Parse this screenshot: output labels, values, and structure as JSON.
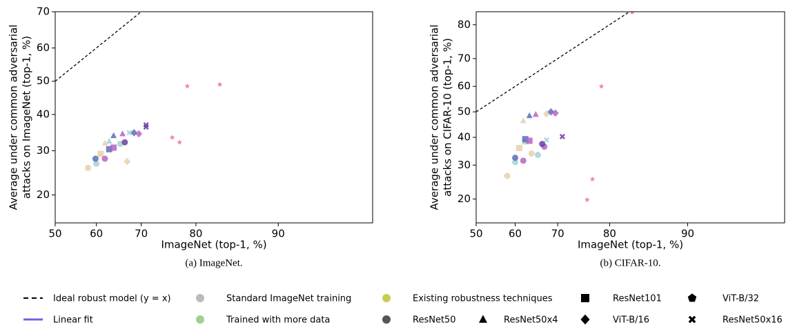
{
  "chart_data": [
    {
      "type": "scatter",
      "caption": "(a)  ImageNet.",
      "xlabel": "ImageNet (top-1, %)",
      "ylabel": [
        "Average under common adversarial",
        "attacks on ImageNet (top-1, %)"
      ],
      "xscale": "logit",
      "yscale": "logit",
      "diagonal": true,
      "xlim": [
        50,
        95.8
      ],
      "ylim": [
        15.1,
        70
      ],
      "xticks": [
        50,
        60,
        70,
        80,
        90
      ],
      "yticks": [
        20,
        30,
        40,
        50,
        60,
        70
      ],
      "series": [
        {
          "color": "#e8cfae",
          "markers": [
            "circle",
            "square",
            "triangle",
            "diamond"
          ],
          "x": [
            58,
            61,
            62,
            67
          ],
          "values": [
            25.8,
            29.2,
            32,
            27.3
          ]
        },
        {
          "color": "#a6d2d2",
          "markers": [
            "circle",
            "triangle",
            "circle",
            "x"
          ],
          "x": [
            60,
            63,
            65.5,
            67.5
          ],
          "values": [
            26.8,
            32.5,
            31.8,
            34.8
          ]
        },
        {
          "color": "#5a6fb5",
          "markers": [
            "circle",
            "square",
            "triangle",
            "diamond"
          ],
          "x": [
            59.8,
            63,
            64,
            68.5
          ],
          "values": [
            28,
            30.4,
            34,
            34.8
          ]
        },
        {
          "color": "#b565c4",
          "markers": [
            "circle",
            "square",
            "triangle",
            "diamond"
          ],
          "x": [
            62,
            64,
            66,
            69.5
          ],
          "values": [
            28,
            30.8,
            34.5,
            34.5
          ]
        },
        {
          "color": "#6a3fa0",
          "markers": [
            "circle",
            "x",
            "x"
          ],
          "x": [
            66.5,
            71,
            71
          ],
          "values": [
            32.2,
            36.4,
            37
          ]
        },
        {
          "color": "#f07080",
          "markers": [
            "star",
            "star",
            "star",
            "star"
          ],
          "x": [
            76,
            77.3,
            78.6,
            83.5
          ],
          "values": [
            33.5,
            32.2,
            48.5,
            49
          ]
        }
      ]
    },
    {
      "type": "scatter",
      "caption": "(b)  CIFAR-10.",
      "xlabel": "ImageNet (top-1, %)",
      "ylabel": [
        "Average under common adversarial",
        "attacks on CIFAR-10 (top-1, %)"
      ],
      "xscale": "logit",
      "yscale": "logit",
      "diagonal": true,
      "xlim": [
        50,
        96.1
      ],
      "ylim": [
        14.6,
        83.1
      ],
      "xticks": [
        50,
        60,
        70,
        80,
        90
      ],
      "yticks": [
        20,
        30,
        40,
        50,
        60,
        70,
        80
      ],
      "series": [
        {
          "color": "#e8cfae",
          "markers": [
            "circle",
            "square",
            "triangle",
            "circle",
            "diamond"
          ],
          "x": [
            58,
            61,
            62,
            64,
            67.5
          ],
          "values": [
            26.5,
            36,
            46.5,
            34,
            49.2
          ]
        },
        {
          "color": "#a6d2d2",
          "markers": [
            "circle",
            "square",
            "circle",
            "x"
          ],
          "x": [
            60,
            62.5,
            65.5,
            67.5
          ],
          "values": [
            31,
            38.5,
            33.5,
            39
          ]
        },
        {
          "color": "#5a6fb5",
          "markers": [
            "circle",
            "square",
            "triangle",
            "diamond"
          ],
          "x": [
            60,
            62.5,
            63.5,
            68.5
          ],
          "values": [
            32.5,
            39.3,
            48.5,
            50
          ]
        },
        {
          "color": "#b565c4",
          "markers": [
            "circle",
            "square",
            "triangle",
            "diamond",
            "circle"
          ],
          "x": [
            62,
            63.5,
            65,
            69.5,
            67
          ],
          "values": [
            31.5,
            38.7,
            49,
            49.5,
            36.5
          ]
        },
        {
          "color": "#6a3fa0",
          "markers": [
            "circle",
            "x"
          ],
          "x": [
            66.5,
            71
          ],
          "values": [
            37.5,
            40.3
          ]
        },
        {
          "color": "#f07080",
          "markers": [
            "star",
            "star",
            "star",
            "star"
          ],
          "x": [
            83.5,
            78.6,
            77,
            76
          ],
          "values": [
            83,
            60,
            25.5,
            19.8
          ]
        }
      ]
    }
  ],
  "legend": [
    {
      "label": "Ideal robust model (y = x)",
      "kind": "dashed-line",
      "color": "#000000"
    },
    {
      "label": "Standard ImageNet training",
      "kind": "circle",
      "color": "#bbbbbb"
    },
    {
      "label": "Existing robustness techniques",
      "kind": "circle",
      "color": "#c8cc55"
    },
    {
      "label": "ResNet101",
      "kind": "square",
      "color": "#000000"
    },
    {
      "label": "ViT-B/32",
      "kind": "pentagon",
      "color": "#000000"
    },
    {
      "label": "Linear fit",
      "kind": "line",
      "color": "#7a5ce6"
    },
    {
      "label": "Trained with more data",
      "kind": "circle",
      "color": "#9fd08f"
    },
    {
      "label": "ResNet50",
      "kind": "circle",
      "color": "#555555"
    },
    {
      "label": "ResNet50x4",
      "kind": "triangle",
      "color": "#000000"
    },
    {
      "label": "ViT-B/16",
      "kind": "diamond",
      "color": "#000000"
    },
    {
      "label": "ResNet50x16",
      "kind": "x",
      "color": "#000000"
    }
  ]
}
